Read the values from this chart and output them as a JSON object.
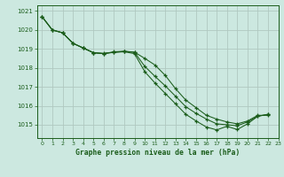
{
  "title": "Graphe pression niveau de la mer (hPa)",
  "background_color": "#cce8e0",
  "grid_color": "#b0c8c0",
  "line_color": "#1a5c1a",
  "xlim": [
    -0.5,
    23
  ],
  "ylim": [
    1014.3,
    1021.3
  ],
  "yticks": [
    1015,
    1016,
    1017,
    1018,
    1019,
    1020,
    1021
  ],
  "xticks": [
    0,
    1,
    2,
    3,
    4,
    5,
    6,
    7,
    8,
    9,
    10,
    11,
    12,
    13,
    14,
    15,
    16,
    17,
    18,
    19,
    20,
    21,
    22,
    23
  ],
  "line1_x": [
    0,
    1,
    2,
    3,
    4,
    5,
    6,
    7,
    8,
    9,
    10,
    11,
    12,
    13,
    14,
    15,
    16,
    17,
    18,
    19,
    20,
    21,
    22
  ],
  "line1_y": [
    1020.7,
    1020.0,
    1019.85,
    1019.3,
    1019.05,
    1018.8,
    1018.75,
    1018.85,
    1018.88,
    1018.83,
    1018.5,
    1018.15,
    1017.6,
    1016.9,
    1016.3,
    1015.9,
    1015.5,
    1015.3,
    1015.15,
    1015.05,
    1015.2,
    1015.5,
    1015.5
  ],
  "line2_x": [
    0,
    1,
    2,
    3,
    4,
    5,
    6,
    7,
    8,
    9,
    10,
    11,
    12,
    13,
    14,
    15,
    16,
    17,
    18,
    19,
    20,
    21,
    22
  ],
  "line2_y": [
    1020.7,
    1020.0,
    1019.85,
    1019.3,
    1019.05,
    1018.8,
    1018.77,
    1018.82,
    1018.87,
    1018.82,
    1018.08,
    1017.55,
    1017.05,
    1016.5,
    1015.95,
    1015.6,
    1015.3,
    1015.05,
    1015.0,
    1014.95,
    1015.15,
    1015.45,
    1015.55
  ],
  "line3_x": [
    0,
    1,
    2,
    3,
    4,
    5,
    6,
    7,
    8,
    9,
    10,
    11,
    12,
    13,
    14,
    15,
    16,
    17,
    18,
    19,
    20,
    21,
    22
  ],
  "line3_y": [
    1020.7,
    1020.0,
    1019.85,
    1019.3,
    1019.05,
    1018.8,
    1018.75,
    1018.82,
    1018.85,
    1018.75,
    1017.8,
    1017.2,
    1016.65,
    1016.1,
    1015.55,
    1015.2,
    1014.88,
    1014.73,
    1014.92,
    1014.75,
    1015.05,
    1015.45,
    1015.55
  ]
}
